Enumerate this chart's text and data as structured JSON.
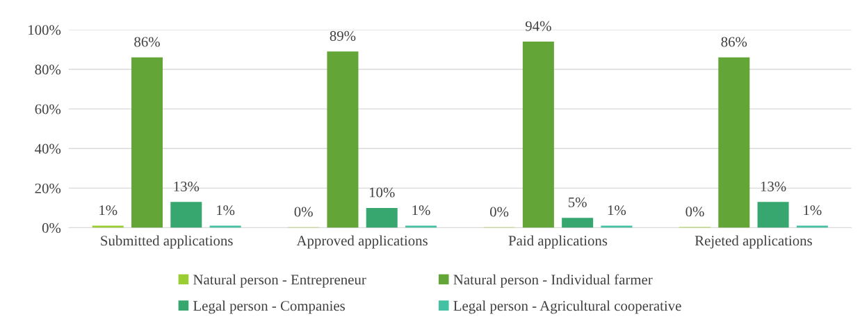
{
  "chart_data": {
    "type": "bar",
    "categories": [
      "Submitted applications",
      "Approved applications",
      "Paid applications",
      "Rejeted applications"
    ],
    "series": [
      {
        "name": "Natural person - Entrepreneur",
        "color": "#9acd32",
        "values": [
          1,
          0.2,
          0.2,
          0.3
        ],
        "value_labels": [
          "1%",
          "0%",
          "0%",
          "0%"
        ]
      },
      {
        "name": "Natural person - Individual farmer",
        "color": "#63a537",
        "values": [
          86,
          89,
          94,
          86
        ],
        "value_labels": [
          "86%",
          "89%",
          "94%",
          "86%"
        ]
      },
      {
        "name": "Legal person - Companies",
        "color": "#37a76f",
        "values": [
          13,
          10,
          5,
          13
        ],
        "value_labels": [
          "13%",
          "10%",
          "5%",
          "13%"
        ]
      },
      {
        "name": "Legal person - Agricultural cooperative",
        "color": "#44c1a3",
        "values": [
          1,
          1,
          1,
          1
        ],
        "value_labels": [
          "1%",
          "1%",
          "1%",
          "1%"
        ]
      }
    ],
    "ylim": [
      0,
      100
    ],
    "yticks": [
      {
        "value": 0,
        "label": "0%"
      },
      {
        "value": 20,
        "label": "20%"
      },
      {
        "value": 40,
        "label": "40%"
      },
      {
        "value": 60,
        "label": "60%"
      },
      {
        "value": 80,
        "label": "80%"
      },
      {
        "value": 100,
        "label": "100%"
      }
    ],
    "grid": "y",
    "legend": "bottom"
  }
}
